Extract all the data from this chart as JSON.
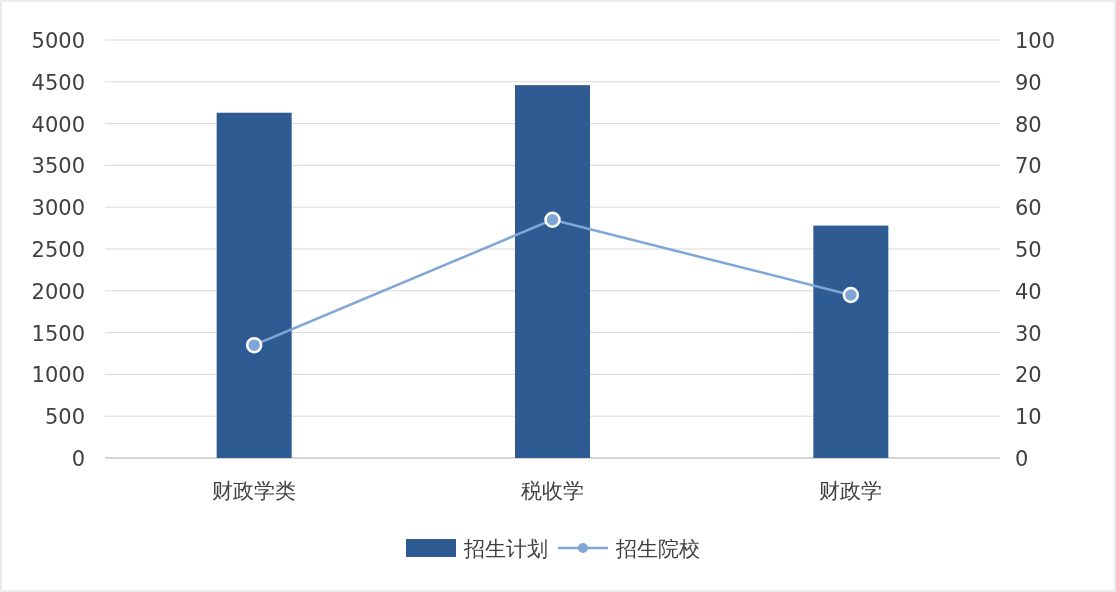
{
  "chart_data": {
    "type": "bar",
    "categories": [
      "财政学类",
      "税收学",
      "财政学"
    ],
    "series": [
      {
        "name": "招生计划",
        "color": "#2f5b93",
        "values": [
          4130,
          4460,
          2780
        ]
      },
      {
        "name": "招生院校",
        "type": "line",
        "axis": "y2",
        "color": "#7fa6d6",
        "marker": "circle",
        "values": [
          27,
          57,
          39
        ]
      }
    ],
    "ylim": [
      0,
      5000
    ],
    "yticks": [
      0,
      500,
      1000,
      1500,
      2000,
      2500,
      3000,
      3500,
      4000,
      4500,
      5000
    ],
    "y2lim": [
      0,
      100
    ],
    "y2ticks": [
      0,
      10,
      20,
      30,
      40,
      50,
      60,
      70,
      80,
      90,
      100
    ],
    "grid": "y",
    "legend": "bottom"
  }
}
